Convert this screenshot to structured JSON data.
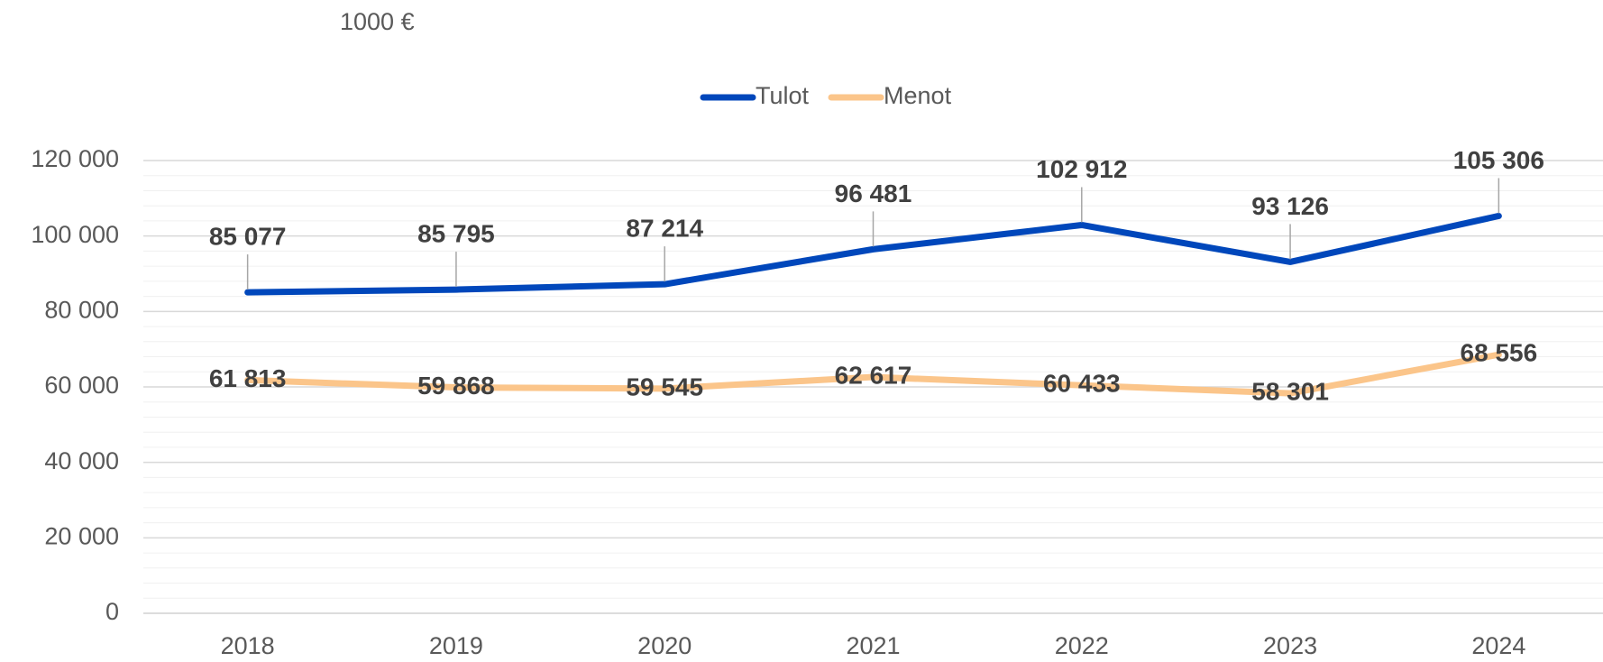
{
  "chart_data": {
    "type": "line",
    "subtitle": "1000 €",
    "categories": [
      "2018",
      "2019",
      "2020",
      "2021",
      "2022",
      "2023",
      "2024"
    ],
    "series": [
      {
        "name": "Tulot",
        "color": "#0047bb",
        "values": [
          85077,
          85795,
          87214,
          96481,
          102912,
          93126,
          105306
        ],
        "value_labels": [
          "85 077",
          "85 795",
          "87 214",
          "96 481",
          "102 912",
          "93 126",
          "105 306"
        ]
      },
      {
        "name": "Menot",
        "color": "#fbc58a",
        "values": [
          61813,
          59868,
          59545,
          62617,
          60433,
          58301,
          68556
        ],
        "value_labels": [
          "61 813",
          "59 868",
          "59 545",
          "62 617",
          "60 433",
          "58 301",
          "68 556"
        ]
      }
    ],
    "ylim": [
      0,
      120000
    ],
    "yticks": [
      {
        "value": 0,
        "label": "0"
      },
      {
        "value": 20000,
        "label": "20 000"
      },
      {
        "value": 40000,
        "label": "40 000"
      },
      {
        "value": 60000,
        "label": "60 000"
      },
      {
        "value": 80000,
        "label": "80 000"
      },
      {
        "value": 100000,
        "label": "100 000"
      },
      {
        "value": 120000,
        "label": "120 000"
      }
    ],
    "grid": true,
    "minor_grid_step": 4000,
    "legend": "top"
  }
}
